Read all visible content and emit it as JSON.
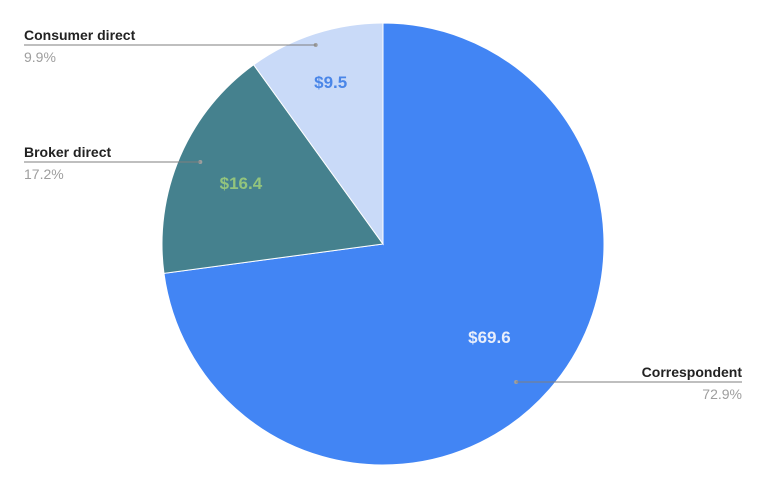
{
  "chart_data": {
    "type": "pie",
    "title": "",
    "start_angle_deg": 0,
    "direction": "clockwise",
    "legend": "callouts",
    "slices": [
      {
        "name": "Correspondent",
        "value": 69.6,
        "value_label": "$69.6",
        "percent_label": "72.9%",
        "color": "#4285f4",
        "value_label_color": "#e8eefb"
      },
      {
        "name": "Broker direct",
        "value": 16.4,
        "value_label": "$16.4",
        "percent_label": "17.2%",
        "color": "#45818e",
        "value_label_color": "#93c47d"
      },
      {
        "name": "Consumer direct",
        "value": 9.5,
        "value_label": "$9.5",
        "percent_label": "9.9%",
        "color": "#c9daf8",
        "value_label_color": "#4a86e8"
      }
    ]
  }
}
